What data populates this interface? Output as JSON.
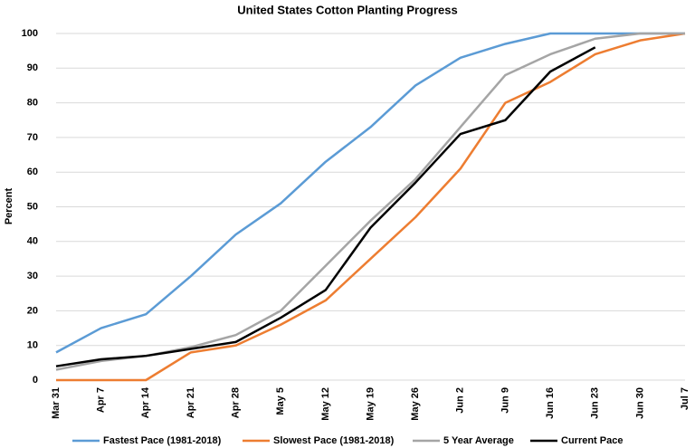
{
  "chart_data": {
    "type": "line",
    "title": "United States Cotton Planting Progress",
    "y_label": "Percent",
    "categories": [
      "Mar 31",
      "Apr 7",
      "Apr 14",
      "Apr 21",
      "Apr 28",
      "May 5",
      "May 12",
      "May 19",
      "May 26",
      "Jun 2",
      "Jun 9",
      "Jun 16",
      "Jun 23",
      "Jun 30",
      "Jul 7"
    ],
    "series": [
      {
        "name": "Fastest Pace (1981-2018)",
        "color": "#5b9bd5",
        "values": [
          8,
          15,
          19,
          30,
          42,
          51,
          63,
          73,
          85,
          93,
          97,
          100,
          100,
          100,
          100
        ]
      },
      {
        "name": "Slowest Pace (1981-2018)",
        "color": "#ed7d31",
        "values": [
          0,
          0,
          0,
          8,
          10,
          16,
          23,
          35,
          47,
          61,
          80,
          86,
          94,
          98,
          100
        ]
      },
      {
        "name": "5 Year Average",
        "color": "#a5a5a5",
        "values": [
          3,
          5.5,
          7,
          9.5,
          13,
          20,
          33,
          46,
          58,
          73,
          88,
          94,
          98.5,
          100,
          100
        ]
      },
      {
        "name": "Current Pace",
        "color": "#000000",
        "values": [
          4,
          6,
          7,
          9,
          11,
          18,
          26,
          44,
          57,
          71,
          75,
          89,
          96,
          null,
          null
        ]
      }
    ],
    "ylim": [
      0,
      100
    ],
    "yticks": [
      0,
      10,
      20,
      30,
      40,
      50,
      60,
      70,
      80,
      90,
      100
    ],
    "grid": true,
    "legend": "bottom"
  }
}
